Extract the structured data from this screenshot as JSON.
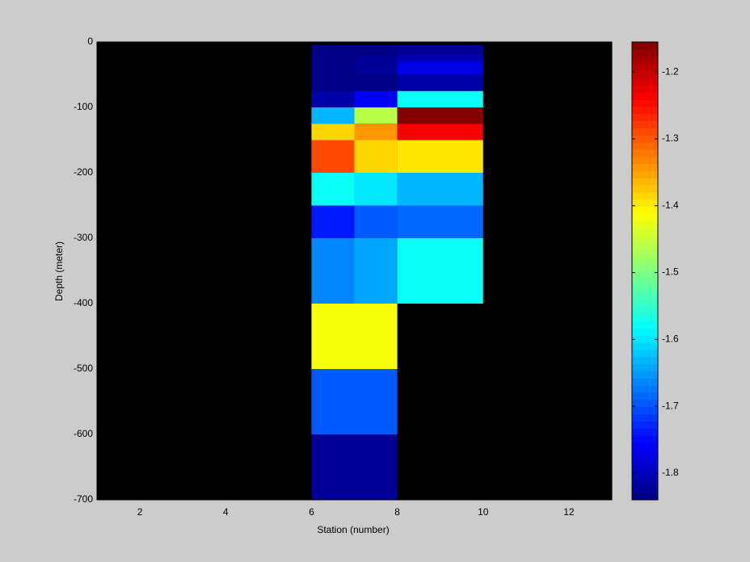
{
  "chart_data": {
    "type": "heatmap",
    "x_label": "Station (number)",
    "y_label": "Depth (meter)",
    "xlim": [
      1,
      13
    ],
    "ylim": [
      -700,
      0
    ],
    "xticks": [
      2,
      4,
      6,
      8,
      10,
      12
    ],
    "yticks": [
      0,
      -100,
      -200,
      -300,
      -400,
      -500,
      -600,
      -700
    ],
    "background": "#000000",
    "colormap": "jet",
    "clim": [
      -1.84,
      -1.155
    ],
    "colorbar_ticks": [
      -1.2,
      -1.3,
      -1.4,
      -1.5,
      -1.6,
      -1.7,
      -1.8
    ],
    "cells": [
      {
        "x": [
          6,
          7
        ],
        "y": [
          -5,
          -75
        ],
        "value": -1.84
      },
      {
        "x": [
          6,
          7
        ],
        "y": [
          -75,
          -100
        ],
        "value": -1.81
      },
      {
        "x": [
          6,
          7
        ],
        "y": [
          -100,
          -125
        ],
        "value": -1.63
      },
      {
        "x": [
          6,
          7
        ],
        "y": [
          -125,
          -150
        ],
        "value": -1.39
      },
      {
        "x": [
          6,
          7
        ],
        "y": [
          -150,
          -200
        ],
        "value": -1.29
      },
      {
        "x": [
          6,
          7
        ],
        "y": [
          -200,
          -250
        ],
        "value": -1.58
      },
      {
        "x": [
          6,
          7
        ],
        "y": [
          -250,
          -300
        ],
        "value": -1.74
      },
      {
        "x": [
          6,
          7
        ],
        "y": [
          -300,
          -400
        ],
        "value": -1.66
      },
      {
        "x": [
          6,
          8
        ],
        "y": [
          -400,
          -500
        ],
        "value": -1.42
      },
      {
        "x": [
          6,
          8
        ],
        "y": [
          -500,
          -600
        ],
        "value": -1.7
      },
      {
        "x": [
          6,
          8
        ],
        "y": [
          -600,
          -700
        ],
        "value": -1.82
      },
      {
        "x": [
          7,
          8
        ],
        "y": [
          -5,
          -20
        ],
        "value": -1.84
      },
      {
        "x": [
          7,
          8
        ],
        "y": [
          -20,
          -50
        ],
        "value": -1.82
      },
      {
        "x": [
          7,
          8
        ],
        "y": [
          -50,
          -75
        ],
        "value": -1.84
      },
      {
        "x": [
          7,
          8
        ],
        "y": [
          -75,
          -100
        ],
        "value": -1.76
      },
      {
        "x": [
          7,
          8
        ],
        "y": [
          -100,
          -125
        ],
        "value": -1.46
      },
      {
        "x": [
          7,
          8
        ],
        "y": [
          -125,
          -150
        ],
        "value": -1.34
      },
      {
        "x": [
          7,
          8
        ],
        "y": [
          -150,
          -200
        ],
        "value": -1.38
      },
      {
        "x": [
          7,
          8
        ],
        "y": [
          -200,
          -250
        ],
        "value": -1.6
      },
      {
        "x": [
          7,
          8
        ],
        "y": [
          -250,
          -300
        ],
        "value": -1.7
      },
      {
        "x": [
          7,
          8
        ],
        "y": [
          -300,
          -400
        ],
        "value": -1.64
      },
      {
        "x": [
          8,
          10
        ],
        "y": [
          -5,
          -20
        ],
        "value": -1.82
      },
      {
        "x": [
          8,
          10
        ],
        "y": [
          -20,
          -30
        ],
        "value": -1.8
      },
      {
        "x": [
          8,
          10
        ],
        "y": [
          -30,
          -50
        ],
        "value": -1.77
      },
      {
        "x": [
          8,
          10
        ],
        "y": [
          -50,
          -75
        ],
        "value": -1.81
      },
      {
        "x": [
          8,
          10
        ],
        "y": [
          -75,
          -100
        ],
        "value": -1.58
      },
      {
        "x": [
          8,
          10
        ],
        "y": [
          -100,
          -125
        ],
        "value": -1.16
      },
      {
        "x": [
          8,
          10
        ],
        "y": [
          -125,
          -150
        ],
        "value": -1.23
      },
      {
        "x": [
          8,
          10
        ],
        "y": [
          -150,
          -200
        ],
        "value": -1.4
      },
      {
        "x": [
          8,
          10
        ],
        "y": [
          -200,
          -250
        ],
        "value": -1.63
      },
      {
        "x": [
          8,
          10
        ],
        "y": [
          -250,
          -300
        ],
        "value": -1.68
      },
      {
        "x": [
          8,
          10
        ],
        "y": [
          -300,
          -400
        ],
        "value": -1.58
      }
    ]
  }
}
